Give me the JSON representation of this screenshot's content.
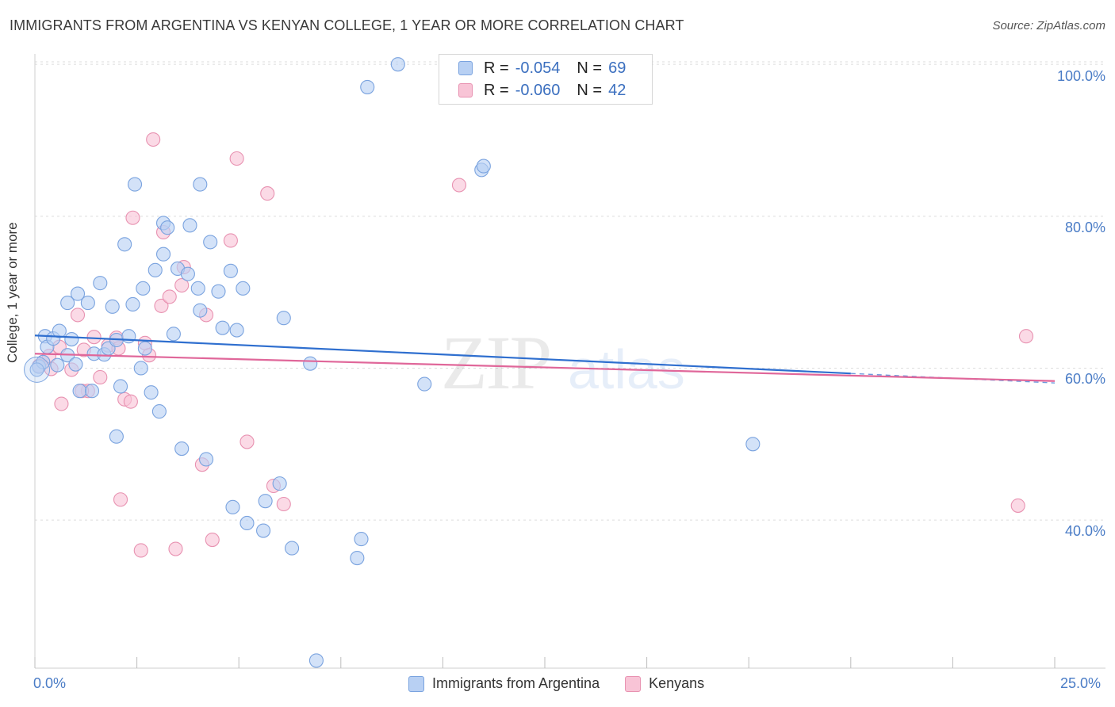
{
  "title": "IMMIGRANTS FROM ARGENTINA VS KENYAN COLLEGE, 1 YEAR OR MORE CORRELATION CHART",
  "source": "Source: ZipAtlas.com",
  "watermark": {
    "part1": "ZIP",
    "part2": "atlas"
  },
  "legend": {
    "series1": {
      "r_label": "R =",
      "r_value": "-0.054",
      "n_label": "N =",
      "n_value": "69"
    },
    "series2": {
      "r_label": "R =",
      "r_value": "-0.060",
      "n_label": "N =",
      "n_value": "42"
    }
  },
  "colors": {
    "blue_fill": "#b8d0f3",
    "blue_stroke": "#7aa3df",
    "blue_line": "#2f6fcf",
    "pink_fill": "#f8c4d6",
    "pink_stroke": "#e892b1",
    "pink_line": "#e0679a",
    "grid": "#dcdcdc",
    "tick_text": "#4a7cc6"
  },
  "chart_data": {
    "type": "scatter",
    "title": "IMMIGRANTS FROM ARGENTINA VS KENYAN COLLEGE, 1 YEAR OR MORE CORRELATION CHART",
    "xlabel": "",
    "ylabel": "College, 1 year or more",
    "xlim": [
      0,
      25
    ],
    "ylim": [
      20.5,
      102
    ],
    "x_tick_labels": [
      "0.0%",
      "25.0%"
    ],
    "y_ticks": [
      40,
      60,
      80,
      100
    ],
    "y_tick_labels": [
      "40.0%",
      "60.0%",
      "80.0%",
      "100.0%"
    ],
    "grid": true,
    "legend_position": "top-center",
    "series": [
      {
        "name": "Immigrants from Argentina",
        "color": "#7aa3df",
        "points": [
          [
            0.1,
            60.2
          ],
          [
            0.2,
            60.8
          ],
          [
            0.25,
            64.2
          ],
          [
            0.3,
            62.8
          ],
          [
            0.45,
            63.9
          ],
          [
            0.55,
            60.4
          ],
          [
            0.6,
            64.9
          ],
          [
            0.8,
            68.6
          ],
          [
            0.8,
            61.7
          ],
          [
            0.9,
            63.8
          ],
          [
            1.0,
            60.5
          ],
          [
            1.05,
            69.8
          ],
          [
            1.1,
            57.0
          ],
          [
            1.3,
            68.6
          ],
          [
            1.4,
            57.0
          ],
          [
            1.45,
            61.9
          ],
          [
            1.6,
            71.2
          ],
          [
            1.7,
            61.8
          ],
          [
            1.8,
            62.6
          ],
          [
            1.9,
            68.1
          ],
          [
            2.0,
            63.7
          ],
          [
            2.0,
            51.0
          ],
          [
            2.1,
            57.6
          ],
          [
            2.2,
            76.3
          ],
          [
            2.3,
            64.2
          ],
          [
            2.4,
            68.4
          ],
          [
            2.45,
            84.2
          ],
          [
            2.6,
            60.0
          ],
          [
            2.65,
            70.5
          ],
          [
            2.7,
            62.6
          ],
          [
            2.85,
            56.8
          ],
          [
            2.95,
            72.9
          ],
          [
            3.05,
            54.3
          ],
          [
            3.15,
            79.1
          ],
          [
            3.15,
            75.0
          ],
          [
            3.25,
            78.5
          ],
          [
            3.4,
            64.5
          ],
          [
            3.5,
            73.1
          ],
          [
            3.6,
            49.4
          ],
          [
            3.75,
            72.4
          ],
          [
            3.8,
            78.8
          ],
          [
            4.0,
            70.5
          ],
          [
            4.05,
            67.6
          ],
          [
            4.05,
            84.2
          ],
          [
            4.2,
            48.0
          ],
          [
            4.3,
            76.6
          ],
          [
            4.5,
            70.1
          ],
          [
            4.6,
            65.3
          ],
          [
            4.8,
            72.8
          ],
          [
            4.85,
            41.7
          ],
          [
            4.95,
            65.0
          ],
          [
            5.1,
            70.5
          ],
          [
            5.2,
            39.6
          ],
          [
            5.6,
            38.6
          ],
          [
            5.65,
            42.5
          ],
          [
            6.0,
            44.8
          ],
          [
            6.1,
            66.6
          ],
          [
            6.3,
            36.3
          ],
          [
            6.75,
            60.6
          ],
          [
            6.9,
            21.5
          ],
          [
            7.9,
            35.0
          ],
          [
            8.0,
            37.5
          ],
          [
            8.15,
            97.0
          ],
          [
            8.9,
            100.0
          ],
          [
            9.55,
            57.9
          ],
          [
            10.95,
            86.1
          ],
          [
            11.0,
            86.6
          ],
          [
            17.6,
            50.0
          ],
          [
            0.05,
            59.8
          ]
        ]
      },
      {
        "name": "Kenyans",
        "color": "#e892b1",
        "points": [
          [
            0.2,
            60.8
          ],
          [
            0.35,
            61.6
          ],
          [
            0.4,
            59.9
          ],
          [
            0.6,
            62.8
          ],
          [
            0.65,
            55.3
          ],
          [
            0.9,
            59.8
          ],
          [
            1.05,
            67.0
          ],
          [
            1.2,
            62.4
          ],
          [
            1.3,
            57.0
          ],
          [
            1.45,
            64.1
          ],
          [
            1.6,
            58.8
          ],
          [
            1.8,
            63.0
          ],
          [
            2.0,
            64.0
          ],
          [
            2.1,
            42.7
          ],
          [
            2.2,
            55.9
          ],
          [
            2.35,
            55.6
          ],
          [
            2.4,
            79.8
          ],
          [
            2.6,
            36.0
          ],
          [
            2.7,
            63.3
          ],
          [
            2.8,
            61.7
          ],
          [
            2.9,
            90.1
          ],
          [
            3.1,
            68.2
          ],
          [
            3.15,
            77.9
          ],
          [
            3.3,
            69.4
          ],
          [
            3.45,
            36.2
          ],
          [
            3.6,
            70.9
          ],
          [
            3.65,
            73.3
          ],
          [
            4.1,
            47.3
          ],
          [
            4.2,
            67.0
          ],
          [
            4.35,
            37.4
          ],
          [
            4.8,
            76.8
          ],
          [
            4.95,
            87.6
          ],
          [
            5.2,
            50.3
          ],
          [
            5.7,
            83.0
          ],
          [
            5.85,
            44.5
          ],
          [
            6.1,
            42.1
          ],
          [
            10.4,
            84.1
          ],
          [
            24.3,
            64.2
          ],
          [
            24.1,
            41.9
          ],
          [
            0.1,
            60.3
          ],
          [
            1.15,
            57.0
          ],
          [
            2.05,
            62.6
          ]
        ]
      }
    ],
    "trend_lines": [
      {
        "series": "Immigrants from Argentina",
        "x": [
          0.0,
          20.0
        ],
        "y": [
          64.3,
          59.3
        ],
        "dashed_extension_to": 25.0
      },
      {
        "series": "Kenyans",
        "x": [
          0.0,
          25.0
        ],
        "y": [
          61.9,
          58.3
        ]
      }
    ]
  }
}
